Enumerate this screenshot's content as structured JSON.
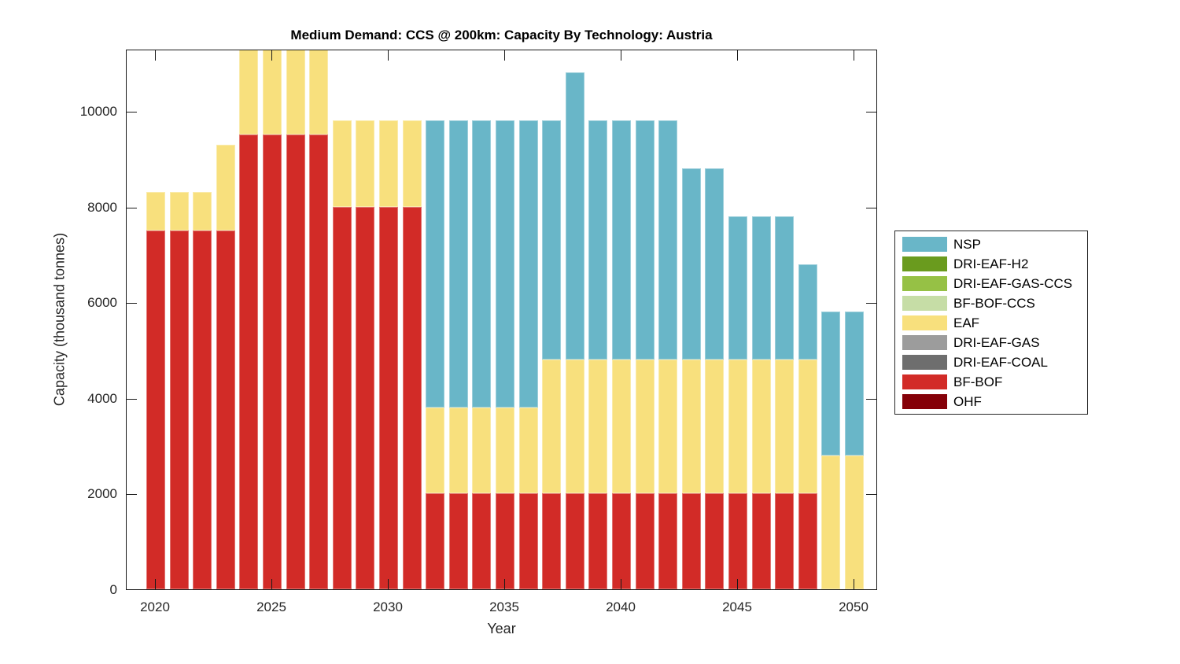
{
  "chart_data": {
    "type": "bar",
    "stacked": true,
    "title": "Medium Demand: CCS @ 200km: Capacity By Technology: Austria",
    "xlabel": "Year",
    "ylabel": "Capacity (thousand tonnes)",
    "ylim": [
      0,
      11300
    ],
    "yticks": [
      0,
      2000,
      4000,
      6000,
      8000,
      10000
    ],
    "xticks": [
      2020,
      2025,
      2030,
      2035,
      2040,
      2045,
      2050
    ],
    "grid": false,
    "legend_position": "right-outside",
    "note": "Bars for 2024-2027 reach the top axis limit (clipped at ylim). Stacking order bottom-to-top follows series order; only BF-BOF, EAF and NSP have non-zero values.",
    "years": [
      2020,
      2021,
      2022,
      2023,
      2024,
      2025,
      2026,
      2027,
      2028,
      2029,
      2030,
      2031,
      2032,
      2033,
      2034,
      2035,
      2036,
      2037,
      2038,
      2039,
      2040,
      2041,
      2042,
      2043,
      2044,
      2045,
      2046,
      2047,
      2048,
      2049,
      2050
    ],
    "series": [
      {
        "name": "OHF",
        "color": "#850008",
        "values": [
          0,
          0,
          0,
          0,
          0,
          0,
          0,
          0,
          0,
          0,
          0,
          0,
          0,
          0,
          0,
          0,
          0,
          0,
          0,
          0,
          0,
          0,
          0,
          0,
          0,
          0,
          0,
          0,
          0,
          0,
          0
        ]
      },
      {
        "name": "BF-BOF",
        "color": "#D22B27",
        "values": [
          7500,
          7500,
          7500,
          7500,
          9500,
          9500,
          9500,
          9500,
          8000,
          8000,
          8000,
          8000,
          2000,
          2000,
          2000,
          2000,
          2000,
          2000,
          2000,
          2000,
          2000,
          2000,
          2000,
          2000,
          2000,
          2000,
          2000,
          2000,
          2000,
          0,
          0
        ]
      },
      {
        "name": "DRI-EAF-COAL",
        "color": "#6E6E6E",
        "values": [
          0,
          0,
          0,
          0,
          0,
          0,
          0,
          0,
          0,
          0,
          0,
          0,
          0,
          0,
          0,
          0,
          0,
          0,
          0,
          0,
          0,
          0,
          0,
          0,
          0,
          0,
          0,
          0,
          0,
          0,
          0
        ]
      },
      {
        "name": "DRI-EAF-GAS",
        "color": "#9C9C9C",
        "values": [
          0,
          0,
          0,
          0,
          0,
          0,
          0,
          0,
          0,
          0,
          0,
          0,
          0,
          0,
          0,
          0,
          0,
          0,
          0,
          0,
          0,
          0,
          0,
          0,
          0,
          0,
          0,
          0,
          0,
          0,
          0
        ]
      },
      {
        "name": "EAF",
        "color": "#F8E07D",
        "values": [
          800,
          800,
          800,
          1800,
          1800,
          1800,
          1800,
          1800,
          1800,
          1800,
          1800,
          1800,
          1800,
          1800,
          1800,
          1800,
          1800,
          2800,
          2800,
          2800,
          2800,
          2800,
          2800,
          2800,
          2800,
          2800,
          2800,
          2800,
          2800,
          2800,
          2800
        ]
      },
      {
        "name": "BF-BOF-CCS",
        "color": "#C6DDA6",
        "values": [
          0,
          0,
          0,
          0,
          0,
          0,
          0,
          0,
          0,
          0,
          0,
          0,
          0,
          0,
          0,
          0,
          0,
          0,
          0,
          0,
          0,
          0,
          0,
          0,
          0,
          0,
          0,
          0,
          0,
          0,
          0
        ]
      },
      {
        "name": "DRI-EAF-GAS-CCS",
        "color": "#96C145",
        "values": [
          0,
          0,
          0,
          0,
          0,
          0,
          0,
          0,
          0,
          0,
          0,
          0,
          0,
          0,
          0,
          0,
          0,
          0,
          0,
          0,
          0,
          0,
          0,
          0,
          0,
          0,
          0,
          0,
          0,
          0,
          0
        ]
      },
      {
        "name": "DRI-EAF-H2",
        "color": "#6A9B1E",
        "values": [
          0,
          0,
          0,
          0,
          0,
          0,
          0,
          0,
          0,
          0,
          0,
          0,
          0,
          0,
          0,
          0,
          0,
          0,
          0,
          0,
          0,
          0,
          0,
          0,
          0,
          0,
          0,
          0,
          0,
          0,
          0
        ]
      },
      {
        "name": "NSP",
        "color": "#69B6C8",
        "values": [
          0,
          0,
          0,
          0,
          0,
          0,
          0,
          0,
          0,
          0,
          0,
          0,
          6000,
          6000,
          6000,
          6000,
          6000,
          5000,
          6000,
          5000,
          5000,
          5000,
          5000,
          4000,
          4000,
          3000,
          3000,
          3000,
          2000,
          3000,
          3000
        ]
      }
    ],
    "legend_entries": [
      "NSP",
      "DRI-EAF-H2",
      "DRI-EAF-GAS-CCS",
      "BF-BOF-CCS",
      "EAF",
      "DRI-EAF-GAS",
      "DRI-EAF-COAL",
      "BF-BOF",
      "OHF"
    ],
    "totals_by_year": [
      8300,
      8300,
      8300,
      9300,
      11300,
      11300,
      11300,
      11300,
      9800,
      9800,
      9800,
      9800,
      9800,
      9800,
      9800,
      9800,
      9800,
      9800,
      10800,
      9800,
      9800,
      9800,
      9800,
      8800,
      8800,
      7800,
      7800,
      7800,
      6800,
      5800,
      5800
    ]
  }
}
